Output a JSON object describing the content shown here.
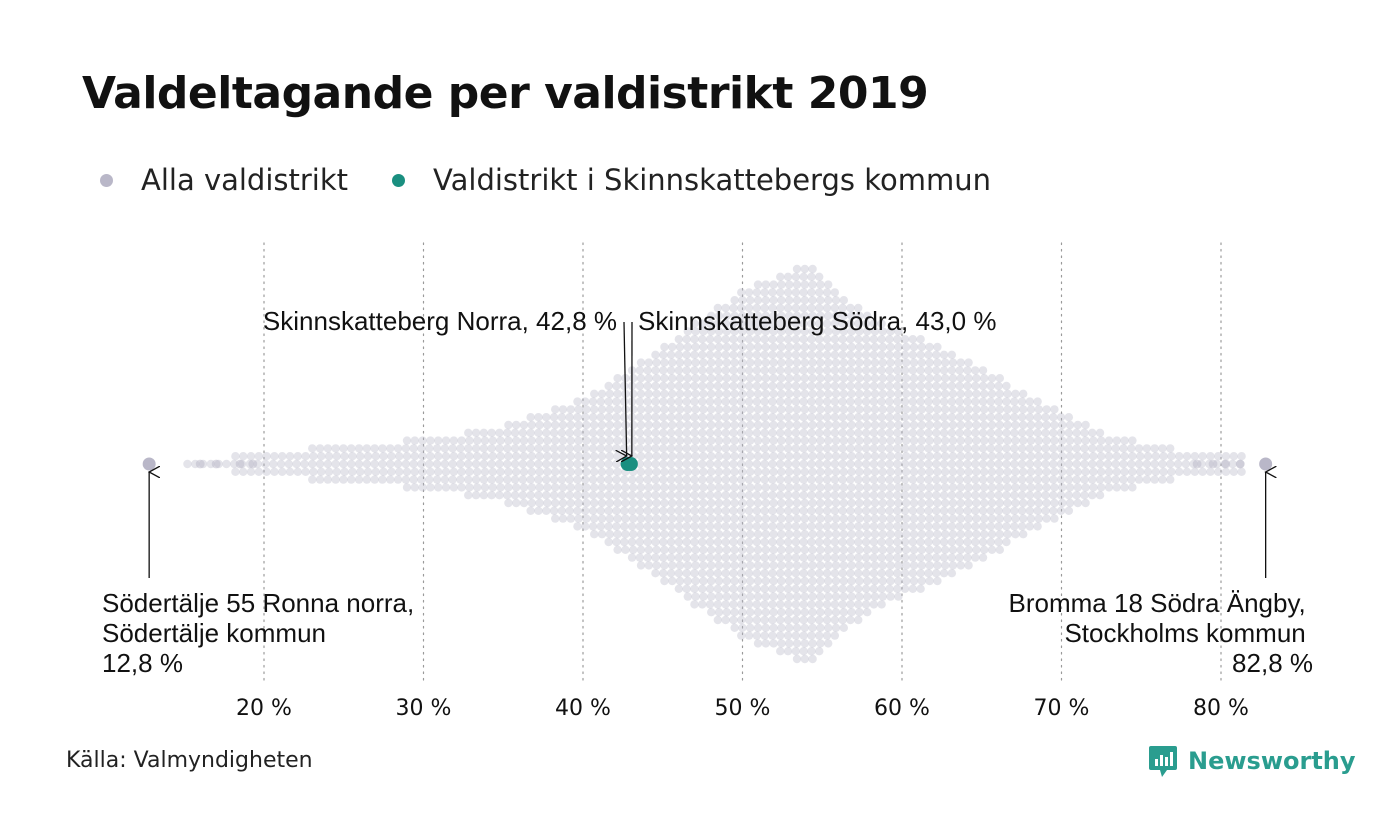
{
  "title": "Valdeltagande per valdistrikt 2019",
  "legend": [
    {
      "label": "Alla valdistrikt",
      "color": "#b9b7c8"
    },
    {
      "label": "Valdistrikt i Skinnskattebergs kommun",
      "color": "#1a8f80"
    }
  ],
  "source": "Källa: Valmyndigheten",
  "logo": {
    "text": "Newsworthy",
    "icon": "newsworthy-logo-icon"
  },
  "chart_data": {
    "type": "scatter",
    "subtype": "beeswarm",
    "title": "Valdeltagande per valdistrikt 2019",
    "x_ticks": [
      20,
      30,
      40,
      50,
      60,
      70,
      80
    ],
    "x_tick_labels": [
      "20 %",
      "30 %",
      "40 %",
      "50 %",
      "60 %",
      "70 %",
      "80 %"
    ],
    "xlim": [
      12.8,
      82.8
    ],
    "grid": "vertical-dotted",
    "density_shape": [
      {
        "x": 16,
        "spread": 0.4
      },
      {
        "x": 20,
        "spread": 0.5
      },
      {
        "x": 25,
        "spread": 1.2
      },
      {
        "x": 30,
        "spread": 1.4
      },
      {
        "x": 35,
        "spread": 2.2
      },
      {
        "x": 40,
        "spread": 3.8
      },
      {
        "x": 45,
        "spread": 6.8
      },
      {
        "x": 50,
        "spread": 10
      },
      {
        "x": 54,
        "spread": 11.5
      },
      {
        "x": 58,
        "spread": 8.4
      },
      {
        "x": 63,
        "spread": 6.5
      },
      {
        "x": 68,
        "spread": 4
      },
      {
        "x": 72,
        "spread": 2
      },
      {
        "x": 76,
        "spread": 1
      },
      {
        "x": 80,
        "spread": 0.5
      }
    ],
    "highlighted": [
      {
        "label": "Skinnskatteberg Norra, 42,8 %",
        "value": 42.8,
        "group": "Valdistrikt i Skinnskattebergs kommun"
      },
      {
        "label": "Skinnskatteberg Södra, 43,0 %",
        "value": 43.0,
        "group": "Valdistrikt i Skinnskattebergs kommun"
      }
    ],
    "extremes": [
      {
        "lines": [
          "Södertälje 55 Ronna norra,",
          "Södertälje kommun",
          "12,8 %"
        ],
        "value": 12.8
      },
      {
        "lines": [
          "Bromma 18 Södra Ängby,",
          "Stockholms kommun",
          "82,8 %"
        ],
        "value": 82.8
      }
    ]
  }
}
